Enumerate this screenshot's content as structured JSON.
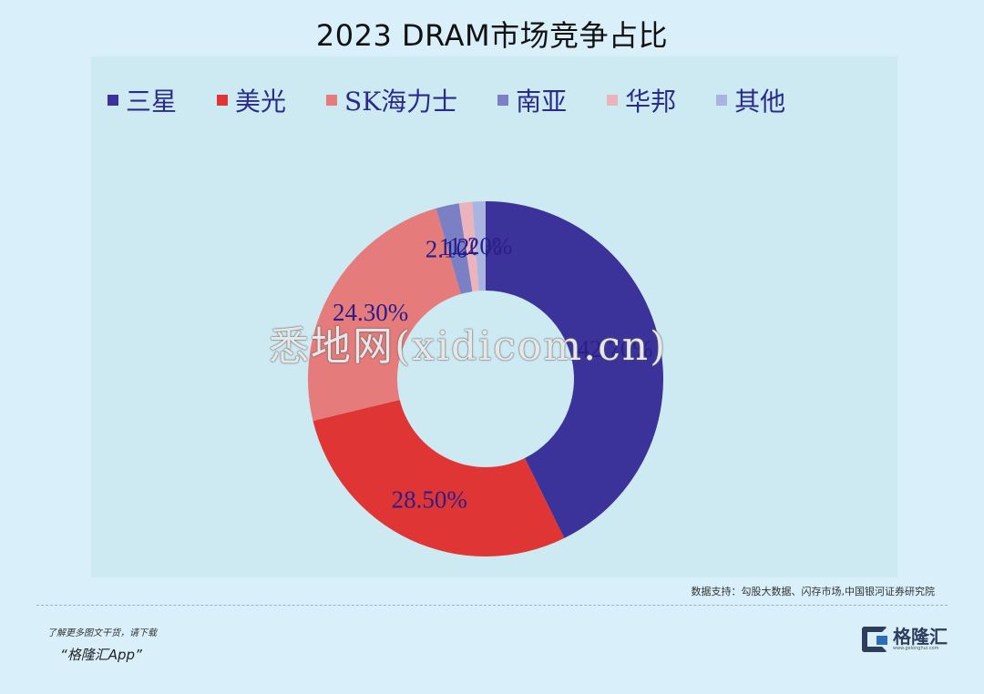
{
  "title": "2023 DRAM市场竞争占比",
  "chart_data": {
    "type": "pie",
    "subtype": "donut",
    "title": "2023 DRAM市场竞争占比",
    "categories": [
      "三星",
      "美光",
      "SK海力士",
      "南亚",
      "华邦",
      "其他"
    ],
    "values": [
      42.7,
      28.5,
      24.3,
      2.1,
      1.2,
      1.2
    ],
    "labels": [
      "42.70%",
      "28.50%",
      "24.30%",
      "2.10%",
      "1.20%",
      "1.20%"
    ],
    "colors": [
      "#3b3399",
      "#e03535",
      "#e57b7b",
      "#7b7fc4",
      "#ebb3bb",
      "#a9b4e0"
    ],
    "legend_position": "top",
    "start_angle": 0,
    "direction": "clockwise"
  },
  "legend": [
    {
      "label": "三星",
      "color": "#3b3399"
    },
    {
      "label": "美光",
      "color": "#e03535"
    },
    {
      "label": "SK海力士",
      "color": "#e57b7b"
    },
    {
      "label": "南亚",
      "color": "#7b7fc4"
    },
    {
      "label": "华邦",
      "color": "#ebb3bb"
    },
    {
      "label": "其他",
      "color": "#a9b4e0"
    }
  ],
  "source": "数据支持：勾股大数据、闪存市场,中国银河证券研究院",
  "footer": {
    "promo_line1": "了解更多图文干货，请下载",
    "promo_line2": "“格隆汇App”",
    "logo_name": "格隆汇",
    "logo_url": "www.gelonghui.com"
  },
  "watermark": "悉地网(xidicom.cn)"
}
